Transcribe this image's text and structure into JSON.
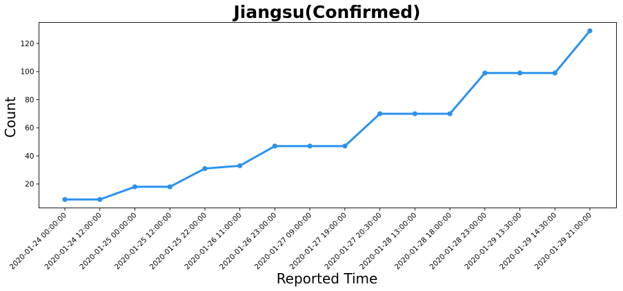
{
  "chart_data": {
    "type": "line",
    "title": "Jiangsu(Confirmed)",
    "xlabel": "Reported Time",
    "ylabel": "Count",
    "categories": [
      "2020-01-24 00:00:00",
      "2020-01-24 12:00:00",
      "2020-01-25 00:00:00",
      "2020-01-25 12:00:00",
      "2020-01-25 22:00:00",
      "2020-01-26 11:00:00",
      "2020-01-26 23:00:00",
      "2020-01-27 09:00:00",
      "2020-01-27 19:00:00",
      "2020-01-27 20:30:00",
      "2020-01-28 13:00:00",
      "2020-01-28 18:00:00",
      "2020-01-28 23:00:00",
      "2020-01-29 13:30:00",
      "2020-01-29 14:30:00",
      "2020-01-29 21:00:00"
    ],
    "values": [
      9,
      9,
      18,
      18,
      31,
      33,
      47,
      47,
      47,
      70,
      70,
      70,
      99,
      99,
      99,
      129
    ],
    "ylim": [
      3,
      135
    ],
    "yticks": [
      20,
      40,
      60,
      80,
      100,
      120
    ],
    "line_color": "#2a91ef",
    "grid": false,
    "legend": "none"
  }
}
